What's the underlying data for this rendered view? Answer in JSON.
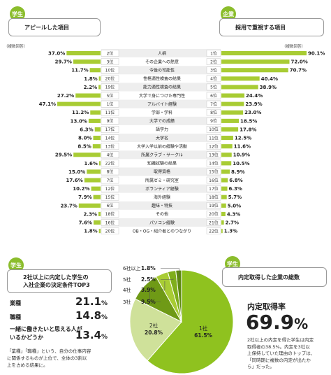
{
  "left_header": {
    "badge": "学生",
    "title": "アピールした項目",
    "note": "（複数回答）"
  },
  "right_header": {
    "badge": "企業",
    "title": "採用で重視する項目",
    "note": "（複数回答）"
  },
  "chart_data": [
    {
      "type": "bar",
      "title": "アピールした項目 / 採用で重視する項目",
      "categories": [
        "人柄",
        "その企業への熱意",
        "今後の可能性",
        "性格適性検査の結果",
        "能力適性検査の結果",
        "大学で身につけた専門性",
        "アルバイト経験",
        "学部・学科",
        "大学での成績",
        "語学力",
        "大学名",
        "大学入学以前の経験や活動",
        "所属クラブ・サークル",
        "知識試験の結果",
        "取得資格",
        "所属ゼミ・研究室",
        "ボランティア経験",
        "海外経験",
        "趣味・特技",
        "その他",
        "パソコン経験",
        "OB・OG・紹介者とのつながり"
      ],
      "series": [
        {
          "name": "アピールした項目",
          "values": [
            37.0,
            29.7,
            11.7,
            1.8,
            2.2,
            27.2,
            47.1,
            11.2,
            13.0,
            6.3,
            8.0,
            8.5,
            29.5,
            1.6,
            15.0,
            17.6,
            10.2,
            7.9,
            23.7,
            2.3,
            7.6,
            1.8
          ],
          "labels": [
            "37.0%",
            "29.7%",
            "11.7%",
            "1.8%",
            "2.2%",
            "27.2%",
            "47.1%",
            "11.2%",
            "13.0%",
            "6.3%",
            "8.0%",
            "8.5%",
            "29.5%",
            "1.6%",
            "15.0%",
            "17.6%",
            "10.2%",
            "7.9%",
            "23.7%",
            "2.3%",
            "7.6%",
            "1.8%"
          ],
          "ranks": [
            "2位",
            "3位",
            "10位",
            "20位",
            "19位",
            "5位",
            "1位",
            "11位",
            "9位",
            "17位",
            "14位",
            "13位",
            "4位",
            "22位",
            "8位",
            "7位",
            "12位",
            "15位",
            "6位",
            "18位",
            "16位",
            "20位"
          ]
        },
        {
          "name": "採用で重視する項目",
          "values": [
            90.1,
            72.0,
            70.7,
            40.4,
            38.9,
            24.4,
            23.9,
            23.0,
            18.5,
            17.8,
            12.5,
            11.6,
            10.9,
            10.5,
            8.9,
            6.8,
            6.3,
            5.7,
            5.0,
            4.3,
            2.7,
            1.3
          ],
          "labels": [
            "90.1%",
            "72.0%",
            "70.7%",
            "40.4%",
            "38.9%",
            "24.4%",
            "23.9%",
            "23.0%",
            "18.5%",
            "17.8%",
            "12.5%",
            "11.6%",
            "10.9%",
            "10.5%",
            "8.9%",
            "6.8%",
            "6.3%",
            "5.7%",
            "5.0%",
            "4.3%",
            "2.7%",
            "1.3%"
          ],
          "ranks": [
            "1位",
            "2位",
            "3位",
            "4位",
            "5位",
            "6位",
            "7位",
            "8位",
            "9位",
            "10位",
            "11位",
            "12位",
            "13位",
            "14位",
            "15位",
            "16位",
            "17位",
            "18位",
            "19位",
            "20位",
            "21位",
            "22位"
          ]
        }
      ],
      "colors": {
        "bar": "#a8cc34",
        "row_alt": "#eeeeee"
      }
    },
    {
      "type": "pie",
      "title": "内定取得した企業の総数",
      "slices": [
        {
          "label": "1社",
          "value": 61.5,
          "text": "61.5%",
          "color": "#8fc21f"
        },
        {
          "label": "2社",
          "value": 20.8,
          "text": "20.8%",
          "color": "#cfe19a"
        },
        {
          "label": "3社",
          "value": 9.5,
          "text": "9.5%",
          "color": "#6f9a16"
        },
        {
          "label": "4社",
          "value": 3.9,
          "text": "3.9%",
          "color": "#a8cc34"
        },
        {
          "label": "5社",
          "value": 2.5,
          "text": "2.5%",
          "color": "#7fae1b"
        },
        {
          "label": "6社以上",
          "value": 1.8,
          "text": "1.8%",
          "color": "#5e8a10"
        }
      ]
    }
  ],
  "bottom_left": {
    "badge": "学生",
    "title_line1": "2社以上に内定した学生の",
    "title_line2": "入社企業の決定条件TOP3",
    "items": [
      {
        "label": "業種",
        "value": "21.1",
        "unit": "%"
      },
      {
        "label": "職種",
        "value": "14.8",
        "unit": "%"
      },
      {
        "label": "一緒に働きたいと思える人が",
        "label2": "いるかどうか",
        "value": "13.4",
        "unit": "%"
      }
    ],
    "note_lines": [
      "「業種」「職種」という、自分の仕事内容",
      "に関係するものが上位で、全体の3割以",
      "上を占める結果に。"
    ]
  },
  "bottom_right": {
    "badge": "学生",
    "title": "内定取得した企業の総数",
    "rate_label": "内定取得率",
    "rate_value": "69.9",
    "rate_unit": "%",
    "note_lines": [
      "2社以上の内定を得た学生は内定",
      "取得者の38.5%。内定を3社以",
      "上保持していた理由のトップは、",
      "「同時期に複数の内定が出たか",
      "ら」だった。"
    ]
  }
}
